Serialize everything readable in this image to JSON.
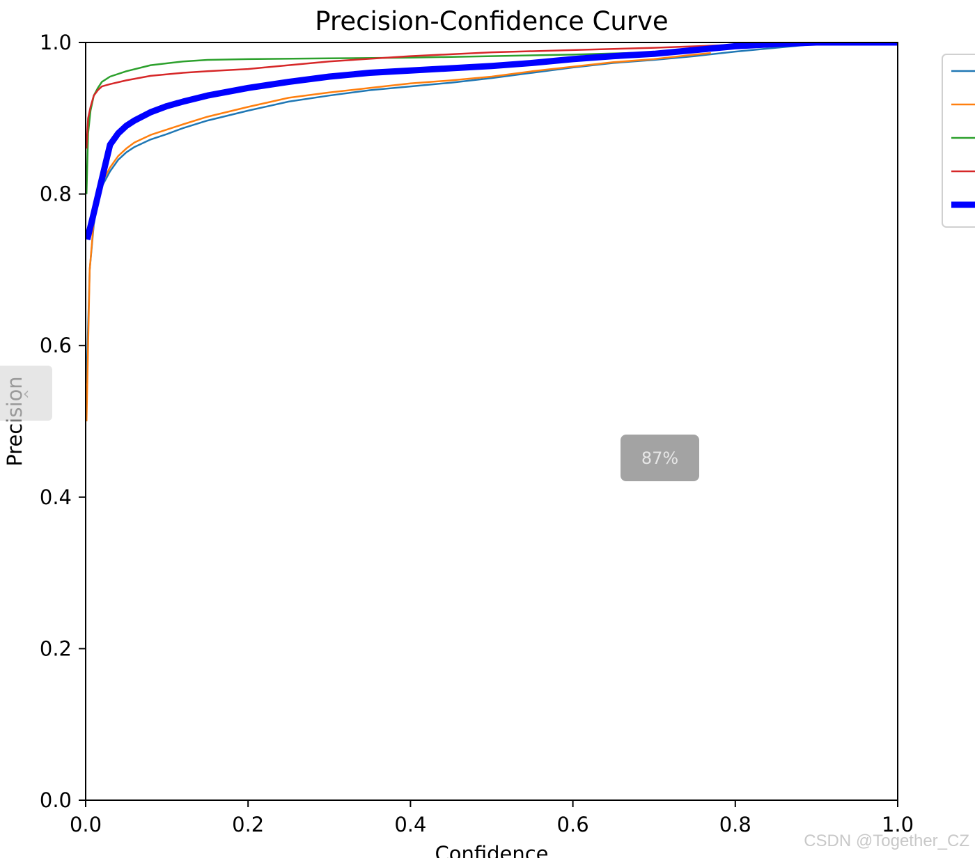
{
  "chart_data": {
    "type": "line",
    "title": "Precision-Confidence Curve",
    "xlabel": "Confidence",
    "ylabel": "Precision",
    "xlim": [
      0.0,
      1.0
    ],
    "ylim": [
      0.0,
      1.0
    ],
    "x_ticks": [
      "0.0",
      "0.2",
      "0.4",
      "0.6",
      "0.8",
      "1.0"
    ],
    "y_ticks": [
      "0.0",
      "0.2",
      "0.4",
      "0.6",
      "0.8",
      "1.0"
    ],
    "grid": false,
    "legend_position": "upper-right-outside",
    "series": [
      {
        "color": "#1f77b4",
        "width": "thin",
        "x": [
          0.001,
          0.005,
          0.01,
          0.015,
          0.02,
          0.03,
          0.04,
          0.05,
          0.06,
          0.08,
          0.1,
          0.12,
          0.15,
          0.2,
          0.25,
          0.3,
          0.35,
          0.4,
          0.45,
          0.5,
          0.55,
          0.6,
          0.65,
          0.7,
          0.75,
          0.8,
          0.85,
          0.9,
          0.95,
          1.0
        ],
        "y": [
          0.55,
          0.7,
          0.76,
          0.79,
          0.81,
          0.83,
          0.845,
          0.855,
          0.862,
          0.872,
          0.879,
          0.887,
          0.897,
          0.91,
          0.922,
          0.93,
          0.937,
          0.942,
          0.947,
          0.953,
          0.96,
          0.967,
          0.973,
          0.977,
          0.982,
          0.988,
          0.993,
          0.998,
          1.0,
          1.0
        ]
      },
      {
        "color": "#ff7f0e",
        "width": "thin",
        "x": [
          0.001,
          0.005,
          0.01,
          0.015,
          0.02,
          0.03,
          0.04,
          0.05,
          0.06,
          0.08,
          0.1,
          0.12,
          0.15,
          0.2,
          0.25,
          0.3,
          0.35,
          0.4,
          0.45,
          0.5,
          0.55,
          0.6,
          0.65,
          0.7,
          0.75,
          0.77
        ],
        "y": [
          0.5,
          0.7,
          0.765,
          0.795,
          0.815,
          0.835,
          0.85,
          0.86,
          0.868,
          0.878,
          0.885,
          0.892,
          0.902,
          0.915,
          0.927,
          0.934,
          0.94,
          0.946,
          0.95,
          0.955,
          0.962,
          0.968,
          0.974,
          0.978,
          0.984,
          0.986
        ]
      },
      {
        "color": "#2ca02c",
        "width": "thin",
        "x": [
          0.001,
          0.003,
          0.006,
          0.01,
          0.015,
          0.02,
          0.03,
          0.05,
          0.08,
          0.12,
          0.15,
          0.2,
          0.3,
          0.4,
          0.5,
          0.6,
          0.7,
          0.8,
          0.9,
          1.0
        ],
        "y": [
          0.8,
          0.88,
          0.91,
          0.93,
          0.94,
          0.948,
          0.955,
          0.962,
          0.97,
          0.975,
          0.977,
          0.978,
          0.979,
          0.98,
          0.982,
          0.984,
          0.987,
          0.993,
          0.998,
          1.0
        ]
      },
      {
        "color": "#d62728",
        "width": "thin",
        "x": [
          0.001,
          0.003,
          0.006,
          0.01,
          0.015,
          0.02,
          0.03,
          0.05,
          0.08,
          0.12,
          0.15,
          0.2,
          0.25,
          0.3,
          0.4,
          0.5,
          0.6,
          0.7,
          0.8,
          0.9,
          1.0
        ],
        "y": [
          0.86,
          0.9,
          0.915,
          0.93,
          0.937,
          0.942,
          0.945,
          0.95,
          0.956,
          0.96,
          0.962,
          0.965,
          0.97,
          0.975,
          0.982,
          0.987,
          0.99,
          0.993,
          0.997,
          1.0,
          1.0
        ]
      },
      {
        "color": "#0000ff",
        "width": "thick",
        "x": [
          0.002,
          0.01,
          0.02,
          0.03,
          0.04,
          0.05,
          0.06,
          0.08,
          0.1,
          0.12,
          0.15,
          0.2,
          0.25,
          0.3,
          0.35,
          0.4,
          0.45,
          0.5,
          0.55,
          0.6,
          0.65,
          0.7,
          0.75,
          0.8,
          0.85,
          0.9,
          0.95,
          1.0
        ],
        "y": [
          0.74,
          0.775,
          0.82,
          0.865,
          0.88,
          0.89,
          0.897,
          0.908,
          0.916,
          0.922,
          0.93,
          0.94,
          0.948,
          0.955,
          0.96,
          0.963,
          0.966,
          0.969,
          0.973,
          0.978,
          0.982,
          0.985,
          0.99,
          0.995,
          0.998,
          1.0,
          1.0,
          1.0
        ]
      }
    ]
  },
  "overlay": {
    "zoom_level": "87%",
    "side_tab_icon": "chevron-left-icon",
    "side_tab_glyph": "‹"
  },
  "watermark": {
    "text": "CSDN @Together_CZ"
  }
}
